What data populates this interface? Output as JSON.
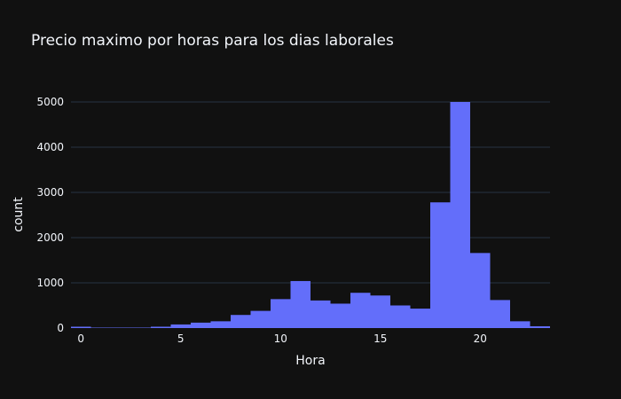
{
  "chart_data": {
    "type": "bar",
    "title": "Precio maximo por horas para los dias laborales",
    "xlabel": "Hora",
    "ylabel": "count",
    "x_ticks": [
      0,
      5,
      10,
      15,
      20
    ],
    "y_ticks": [
      0,
      1000,
      2000,
      3000,
      4000,
      5000
    ],
    "xlim": [
      -0.5,
      23.5
    ],
    "ylim": [
      0,
      5000
    ],
    "grid": true,
    "bar_color": "#636efa",
    "background": "#111111",
    "grid_color": "#283442",
    "text_color": "#f2f5fa",
    "categories": [
      0,
      1,
      2,
      3,
      4,
      5,
      6,
      7,
      8,
      9,
      10,
      11,
      12,
      13,
      14,
      15,
      16,
      17,
      18,
      19,
      20,
      21,
      22,
      23
    ],
    "values": [
      30,
      10,
      10,
      10,
      30,
      80,
      120,
      150,
      290,
      380,
      640,
      1040,
      610,
      540,
      780,
      720,
      500,
      430,
      2780,
      5000,
      1660,
      620,
      150,
      40
    ]
  }
}
